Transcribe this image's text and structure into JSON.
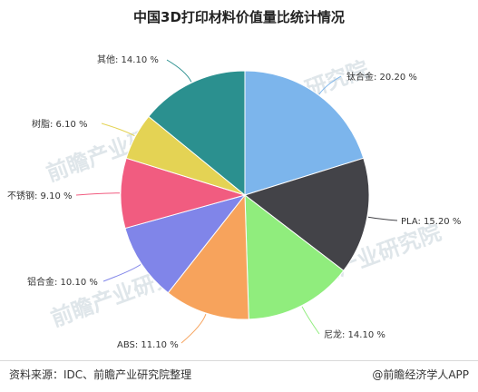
{
  "title": "中国3D打印材料价值量比统计情况",
  "footer": {
    "source": "资料来源：IDC、前瞻产业研究院整理",
    "brand": "@前瞻经济学人APP"
  },
  "watermark": "前瞻产业研究院",
  "chart_data": {
    "type": "pie",
    "title": "中国3D打印材料价值量比统计情况",
    "start_angle_deg": 0,
    "direction": "clockwise",
    "slices": [
      {
        "label": "钛合金",
        "value": 20.2,
        "display": "钛合金: 20.20 %",
        "color": "#7cb5ec"
      },
      {
        "label": "PLA",
        "value": 15.2,
        "display": "PLA: 15.20 %",
        "color": "#434348"
      },
      {
        "label": "尼龙",
        "value": 14.1,
        "display": "尼龙: 14.10 %",
        "color": "#90ed7d"
      },
      {
        "label": "ABS",
        "value": 11.1,
        "display": "ABS: 11.10 %",
        "color": "#f7a35c"
      },
      {
        "label": "铝合金",
        "value": 10.1,
        "display": "铝合金: 10.10 %",
        "color": "#8085e9"
      },
      {
        "label": "不锈钢",
        "value": 9.1,
        "display": "不锈钢: 9.10 %",
        "color": "#f15c80"
      },
      {
        "label": "树脂",
        "value": 6.1,
        "display": "树脂: 6.10 %",
        "color": "#e4d354"
      },
      {
        "label": "其他",
        "value": 14.1,
        "display": "其他: 14.10 %",
        "color": "#2b908f"
      }
    ]
  }
}
